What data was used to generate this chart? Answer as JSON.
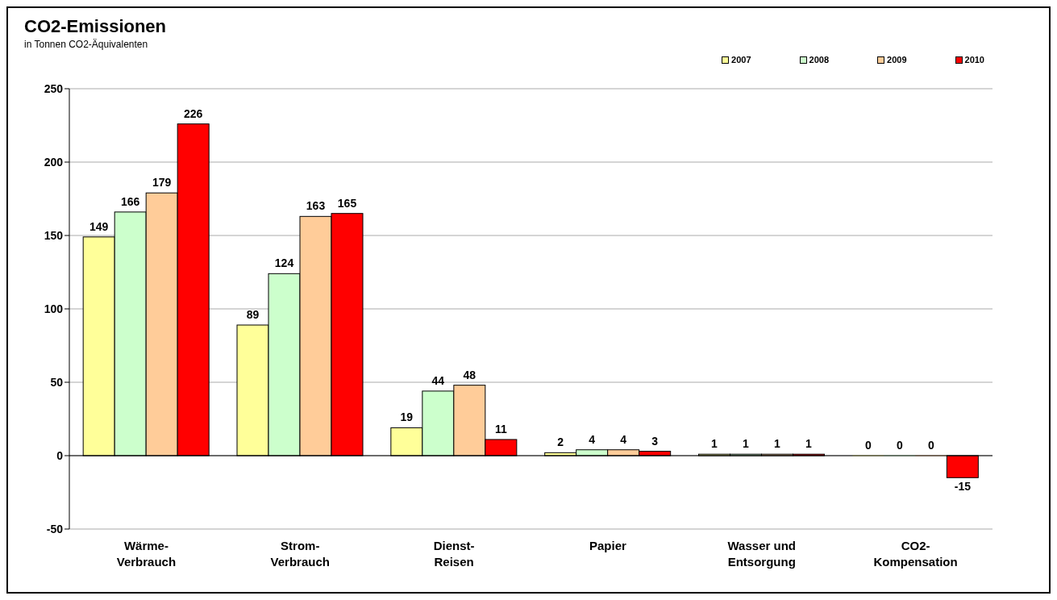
{
  "chart_data": {
    "type": "bar",
    "title": "CO2-Emissionen",
    "subtitle": "in Tonnen CO2-Äquivalenten",
    "categories": [
      "Wärme-\nVerbrauch",
      "Strom-\nVerbrauch",
      "Dienst-\nReisen",
      "Papier",
      "Wasser und\nEntsorgung",
      "CO2-\nKompensation"
    ],
    "series": [
      {
        "name": "2007",
        "color": "#ffff99",
        "values": [
          149,
          89,
          19,
          2,
          1,
          0
        ]
      },
      {
        "name": "2008",
        "color": "#ccffcc",
        "values": [
          166,
          124,
          44,
          4,
          1,
          0
        ]
      },
      {
        "name": "2009",
        "color": "#ffcc99",
        "values": [
          179,
          163,
          48,
          4,
          1,
          0
        ]
      },
      {
        "name": "2010",
        "color": "#ff0000",
        "values": [
          226,
          165,
          11,
          3,
          1,
          -15
        ]
      }
    ],
    "ylim": [
      -50,
      250
    ],
    "yticks": [
      -50,
      0,
      50,
      100,
      150,
      200,
      250
    ],
    "grid": "y",
    "legend": "top right",
    "data_labels": true
  }
}
